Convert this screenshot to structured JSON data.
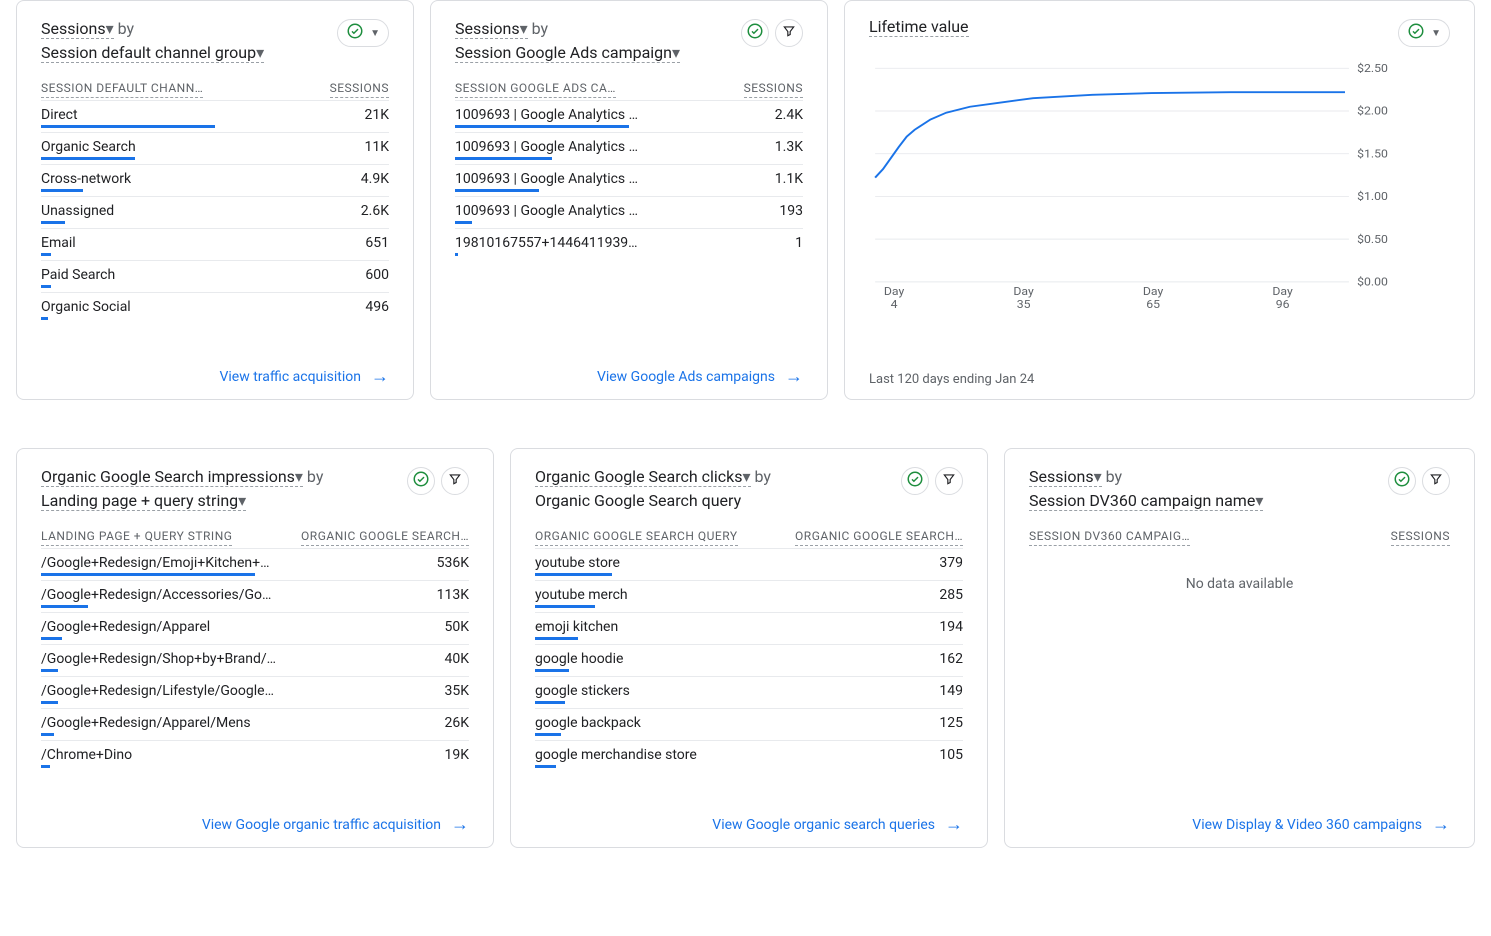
{
  "colors": {
    "link": "#1a73e8",
    "bar": "#1a73e8",
    "border": "#dadce0",
    "text": "#202124",
    "text2": "#5f6368",
    "green": "#1e8e3e"
  },
  "cards": {
    "traffic": {
      "metric": "Sessions",
      "byWord": "by",
      "dimension": "Session default channel group",
      "col1": "SESSION DEFAULT CHANN…",
      "col2": "SESSIONS",
      "rows": [
        {
          "label": "Direct",
          "value": "21K",
          "pct": 50
        },
        {
          "label": "Organic Search",
          "value": "11K",
          "pct": 27
        },
        {
          "label": "Cross-network",
          "value": "4.9K",
          "pct": 12
        },
        {
          "label": "Unassigned",
          "value": "2.6K",
          "pct": 7
        },
        {
          "label": "Email",
          "value": "651",
          "pct": 3
        },
        {
          "label": "Paid Search",
          "value": "600",
          "pct": 3
        },
        {
          "label": "Organic Social",
          "value": "496",
          "pct": 2
        }
      ],
      "link": "View traffic acquisition"
    },
    "ads": {
      "metric": "Sessions",
      "byWord": "by",
      "dimension": "Session Google Ads campaign",
      "col1": "SESSION GOOGLE ADS CA…",
      "col2": "SESSIONS",
      "rows": [
        {
          "label": "1009693 | Google Analytics …",
          "value": "2.4K",
          "pct": 50
        },
        {
          "label": "1009693 | Google Analytics …",
          "value": "1.3K",
          "pct": 28
        },
        {
          "label": "1009693 | Google Analytics …",
          "value": "1.1K",
          "pct": 24
        },
        {
          "label": "1009693 | Google Analytics …",
          "value": "193",
          "pct": 5
        },
        {
          "label": "19810167557+1446411939…",
          "value": "1",
          "pct": 1
        }
      ],
      "link": "View Google Ads campaigns"
    },
    "ltv": {
      "title": "Lifetime value",
      "yMax": 2.5,
      "yTicks": [
        "2.50",
        "2.00",
        "1.50",
        "1.00",
        "0.50",
        "0.00"
      ],
      "xTicks": [
        {
          "top": "Day",
          "bottom": "4"
        },
        {
          "top": "Day",
          "bottom": "35"
        },
        {
          "top": "Day",
          "bottom": "65"
        },
        {
          "top": "Day",
          "bottom": "96"
        }
      ],
      "series": [
        [
          0,
          1.22
        ],
        [
          2,
          1.32
        ],
        [
          4,
          1.45
        ],
        [
          6,
          1.58
        ],
        [
          8,
          1.7
        ],
        [
          10,
          1.78
        ],
        [
          14,
          1.9
        ],
        [
          18,
          1.98
        ],
        [
          24,
          2.05
        ],
        [
          32,
          2.1
        ],
        [
          40,
          2.15
        ],
        [
          55,
          2.19
        ],
        [
          70,
          2.21
        ],
        [
          90,
          2.22
        ],
        [
          110,
          2.22
        ],
        [
          119,
          2.22
        ]
      ],
      "xMax": 120,
      "note": "Last 120 days ending Jan 24"
    },
    "impressions": {
      "metric": "Organic Google Search impressions",
      "byWord": "by",
      "dimension": "Landing page + query string",
      "col1": "LANDING PAGE + QUERY STRING",
      "col2": "ORGANIC GOOGLE SEARCH…",
      "rows": [
        {
          "label": "/Google+Redesign/Emoji+Kitchen+…",
          "value": "536K",
          "pct": 50
        },
        {
          "label": "/Google+Redesign/Accessories/Go…",
          "value": "113K",
          "pct": 11
        },
        {
          "label": "/Google+Redesign/Apparel",
          "value": "50K",
          "pct": 5
        },
        {
          "label": "/Google+Redesign/Shop+by+Brand/…",
          "value": "40K",
          "pct": 4
        },
        {
          "label": "/Google+Redesign/Lifestyle/Google…",
          "value": "35K",
          "pct": 4
        },
        {
          "label": "/Google+Redesign/Apparel/Mens",
          "value": "26K",
          "pct": 3
        },
        {
          "label": "/Chrome+Dino",
          "value": "19K",
          "pct": 2
        }
      ],
      "link": "View Google organic traffic acquisition"
    },
    "clicks": {
      "metric": "Organic Google Search clicks",
      "byWord": "by",
      "dimension": "Organic Google Search query",
      "col1": "ORGANIC GOOGLE SEARCH QUERY",
      "col2": "ORGANIC GOOGLE SEARCH…",
      "rows": [
        {
          "label": "youtube store",
          "value": "379",
          "pct": 18
        },
        {
          "label": "youtube merch",
          "value": "285",
          "pct": 14
        },
        {
          "label": "emoji kitchen",
          "value": "194",
          "pct": 10
        },
        {
          "label": "google hoodie",
          "value": "162",
          "pct": 8
        },
        {
          "label": "google stickers",
          "value": "149",
          "pct": 7
        },
        {
          "label": "google backpack",
          "value": "125",
          "pct": 6
        },
        {
          "label": "google merchandise store",
          "value": "105",
          "pct": 5
        }
      ],
      "link": "View Google organic search queries"
    },
    "dv360": {
      "metric": "Sessions",
      "byWord": "by",
      "dimension": "Session DV360 campaign name",
      "col1": "SESSION DV360 CAMPAIG…",
      "col2": "SESSIONS",
      "noData": "No data available",
      "link": "View Display & Video 360 campaigns"
    }
  }
}
